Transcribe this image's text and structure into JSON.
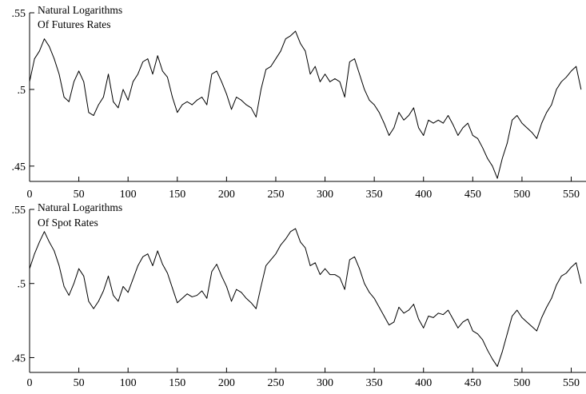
{
  "chart_data": [
    {
      "type": "line",
      "title": "Natural Logarithms",
      "subtitle": "Of Futures Rates",
      "xlabel": "",
      "ylabel": "",
      "xlim": [
        0,
        565
      ],
      "ylim": [
        0.44,
        0.55
      ],
      "x_ticks": [
        0,
        50,
        100,
        150,
        200,
        250,
        300,
        350,
        400,
        450,
        500,
        550
      ],
      "x_tick_labels": [
        "0",
        "50",
        "100",
        "150",
        "200",
        "250",
        "300",
        "350",
        "400",
        "450",
        "500",
        "550"
      ],
      "y_ticks": [
        0.55,
        0.5,
        0.45
      ],
      "y_tick_labels": [
        ".55",
        ".5",
        ".45"
      ],
      "grid": false,
      "line_color": "#000000",
      "series": [
        {
          "x": [
            0,
            5,
            10,
            15,
            20,
            25,
            30,
            35,
            40,
            45,
            50,
            55,
            60,
            65,
            70,
            75,
            80,
            85,
            90,
            95,
            100,
            105,
            110,
            115,
            120,
            125,
            130,
            135,
            140,
            145,
            150,
            155,
            160,
            165,
            170,
            175,
            180,
            185,
            190,
            195,
            200,
            205,
            210,
            215,
            220,
            225,
            230,
            235,
            240,
            245,
            250,
            255,
            260,
            265,
            270,
            275,
            280,
            285,
            290,
            295,
            300,
            305,
            310,
            315,
            320,
            325,
            330,
            335,
            340,
            345,
            350,
            355,
            360,
            365,
            370,
            375,
            380,
            385,
            390,
            395,
            400,
            405,
            410,
            415,
            420,
            425,
            430,
            435,
            440,
            445,
            450,
            455,
            460,
            465,
            470,
            475,
            480,
            485,
            490,
            495,
            500,
            505,
            510,
            515,
            520,
            525,
            530,
            535,
            540,
            545,
            550,
            555,
            560
          ],
          "values": [
            0.505,
            0.52,
            0.525,
            0.533,
            0.528,
            0.52,
            0.51,
            0.495,
            0.492,
            0.505,
            0.512,
            0.505,
            0.485,
            0.483,
            0.49,
            0.495,
            0.51,
            0.492,
            0.488,
            0.5,
            0.493,
            0.505,
            0.51,
            0.518,
            0.52,
            0.51,
            0.522,
            0.512,
            0.508,
            0.495,
            0.485,
            0.49,
            0.492,
            0.49,
            0.493,
            0.495,
            0.49,
            0.51,
            0.512,
            0.505,
            0.497,
            0.487,
            0.495,
            0.493,
            0.49,
            0.488,
            0.482,
            0.5,
            0.513,
            0.515,
            0.52,
            0.525,
            0.533,
            0.535,
            0.538,
            0.53,
            0.525,
            0.51,
            0.515,
            0.505,
            0.51,
            0.505,
            0.507,
            0.505,
            0.495,
            0.518,
            0.52,
            0.51,
            0.5,
            0.493,
            0.49,
            0.485,
            0.478,
            0.47,
            0.475,
            0.485,
            0.48,
            0.483,
            0.488,
            0.475,
            0.47,
            0.48,
            0.478,
            0.48,
            0.478,
            0.483,
            0.477,
            0.47,
            0.475,
            0.478,
            0.47,
            0.468,
            0.462,
            0.455,
            0.45,
            0.442,
            0.455,
            0.465,
            0.48,
            0.483,
            0.478,
            0.475,
            0.472,
            0.468,
            0.478,
            0.485,
            0.49,
            0.5,
            0.505,
            0.508,
            0.512,
            0.515,
            0.5
          ]
        }
      ]
    },
    {
      "type": "line",
      "title": "Natural Logarithms",
      "subtitle": "Of Spot Rates",
      "xlabel": "",
      "ylabel": "",
      "xlim": [
        0,
        565
      ],
      "ylim": [
        0.44,
        0.55
      ],
      "x_ticks": [
        0,
        50,
        100,
        150,
        200,
        250,
        300,
        350,
        400,
        450,
        500,
        550
      ],
      "x_tick_labels": [
        "0",
        "50",
        "100",
        "150",
        "200",
        "250",
        "300",
        "350",
        "400",
        "450",
        "500",
        "550"
      ],
      "y_ticks": [
        0.55,
        0.5,
        0.45
      ],
      "y_tick_labels": [
        ".55",
        ".5",
        ".45"
      ],
      "grid": false,
      "line_color": "#000000",
      "series": [
        {
          "x": [
            0,
            5,
            10,
            15,
            20,
            25,
            30,
            35,
            40,
            45,
            50,
            55,
            60,
            65,
            70,
            75,
            80,
            85,
            90,
            95,
            100,
            105,
            110,
            115,
            120,
            125,
            130,
            135,
            140,
            145,
            150,
            155,
            160,
            165,
            170,
            175,
            180,
            185,
            190,
            195,
            200,
            205,
            210,
            215,
            220,
            225,
            230,
            235,
            240,
            245,
            250,
            255,
            260,
            265,
            270,
            275,
            280,
            285,
            290,
            295,
            300,
            305,
            310,
            315,
            320,
            325,
            330,
            335,
            340,
            345,
            350,
            355,
            360,
            365,
            370,
            375,
            380,
            385,
            390,
            395,
            400,
            405,
            410,
            415,
            420,
            425,
            430,
            435,
            440,
            445,
            450,
            455,
            460,
            465,
            470,
            475,
            480,
            485,
            490,
            495,
            500,
            505,
            510,
            515,
            520,
            525,
            530,
            535,
            540,
            545,
            550,
            555,
            560
          ],
          "values": [
            0.51,
            0.52,
            0.528,
            0.535,
            0.528,
            0.522,
            0.512,
            0.498,
            0.492,
            0.5,
            0.51,
            0.505,
            0.488,
            0.483,
            0.488,
            0.495,
            0.505,
            0.492,
            0.488,
            0.498,
            0.494,
            0.503,
            0.512,
            0.518,
            0.52,
            0.512,
            0.522,
            0.513,
            0.507,
            0.497,
            0.487,
            0.49,
            0.493,
            0.491,
            0.492,
            0.495,
            0.49,
            0.508,
            0.513,
            0.505,
            0.498,
            0.488,
            0.496,
            0.494,
            0.49,
            0.487,
            0.483,
            0.498,
            0.512,
            0.516,
            0.52,
            0.526,
            0.53,
            0.535,
            0.537,
            0.528,
            0.524,
            0.512,
            0.514,
            0.506,
            0.51,
            0.506,
            0.506,
            0.504,
            0.496,
            0.516,
            0.518,
            0.51,
            0.5,
            0.494,
            0.49,
            0.484,
            0.478,
            0.472,
            0.474,
            0.484,
            0.48,
            0.482,
            0.486,
            0.476,
            0.47,
            0.478,
            0.477,
            0.48,
            0.479,
            0.482,
            0.476,
            0.47,
            0.474,
            0.476,
            0.468,
            0.466,
            0.462,
            0.455,
            0.449,
            0.444,
            0.454,
            0.466,
            0.478,
            0.482,
            0.477,
            0.474,
            0.471,
            0.468,
            0.477,
            0.484,
            0.49,
            0.499,
            0.505,
            0.507,
            0.511,
            0.514,
            0.5
          ]
        }
      ]
    }
  ]
}
